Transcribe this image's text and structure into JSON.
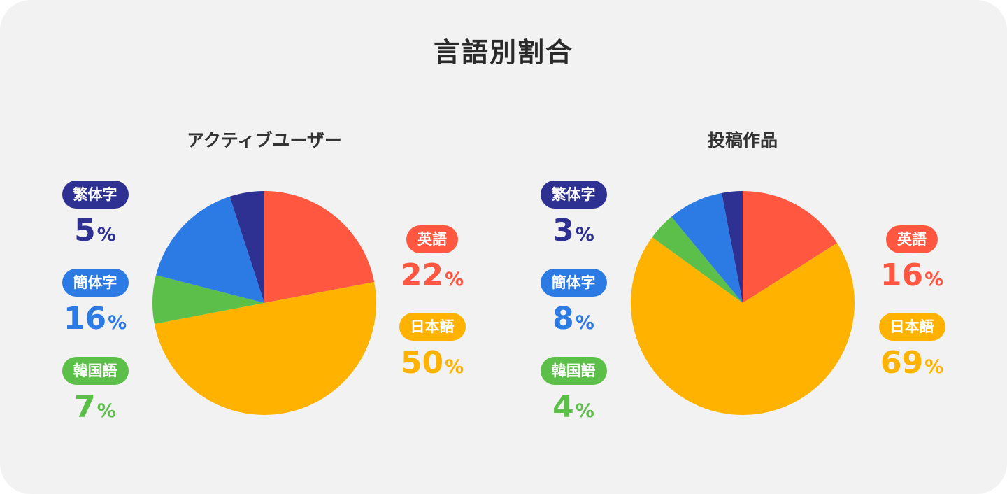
{
  "title": "言語別割合",
  "chart_data": [
    {
      "type": "pie",
      "title": "アクティブユーザー",
      "slices": [
        {
          "label": "英語",
          "value": 22,
          "color": "#ff5740"
        },
        {
          "label": "日本語",
          "value": 50,
          "color": "#ffb300"
        },
        {
          "label": "韓国語",
          "value": 7,
          "color": "#5cbf4a"
        },
        {
          "label": "簡体字",
          "value": 16,
          "color": "#2c7be5"
        },
        {
          "label": "繁体字",
          "value": 5,
          "color": "#2e3192"
        }
      ]
    },
    {
      "type": "pie",
      "title": "投稿作品",
      "slices": [
        {
          "label": "英語",
          "value": 16,
          "color": "#ff5740"
        },
        {
          "label": "日本語",
          "value": 69,
          "color": "#ffb300"
        },
        {
          "label": "韓国語",
          "value": 4,
          "color": "#5cbf4a"
        },
        {
          "label": "簡体字",
          "value": 8,
          "color": "#2c7be5"
        },
        {
          "label": "繁体字",
          "value": 3,
          "color": "#2e3192"
        }
      ]
    }
  ],
  "percent_symbol": "%"
}
